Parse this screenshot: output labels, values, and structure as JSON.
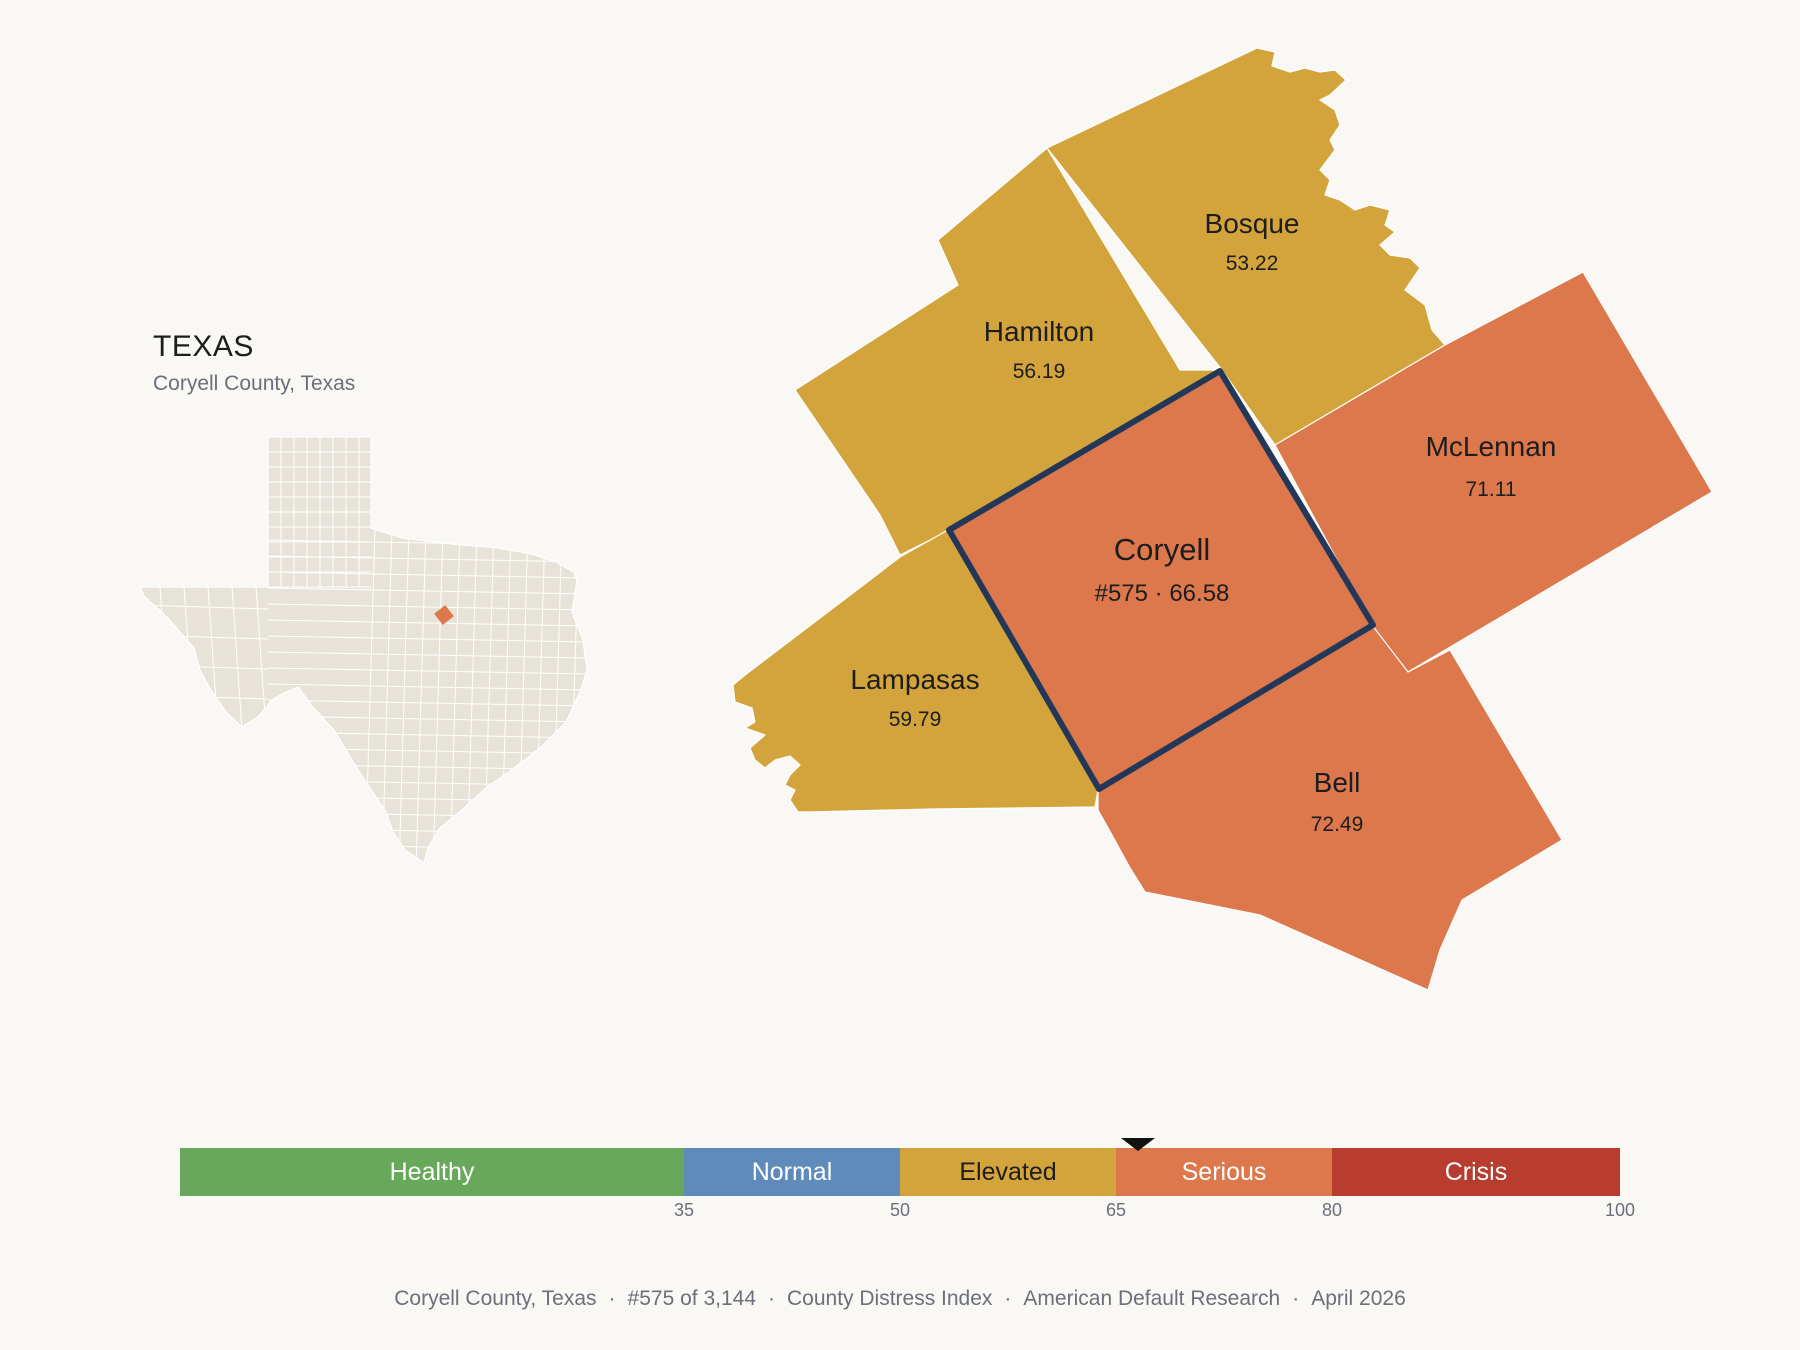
{
  "inset": {
    "title": "TEXAS",
    "subtitle": "Coryell County, Texas"
  },
  "focus_county": {
    "name": "Coryell",
    "label": "#575 · 66.58",
    "rank": 575,
    "score": 66.58
  },
  "neighbors": {
    "bosque": {
      "name": "Bosque",
      "value": "53.22"
    },
    "hamilton": {
      "name": "Hamilton",
      "value": "56.19"
    },
    "mclennan": {
      "name": "McLennan",
      "value": "71.11"
    },
    "lampasas": {
      "name": "Lampasas",
      "value": "59.79"
    },
    "bell": {
      "name": "Bell",
      "value": "72.49"
    }
  },
  "scale": {
    "bands": [
      {
        "label": "Healthy",
        "min": 0,
        "max": 35,
        "color": "#67a85a"
      },
      {
        "label": "Normal",
        "min": 35,
        "max": 50,
        "color": "#5f8bbb"
      },
      {
        "label": "Elevated",
        "min": 50,
        "max": 65,
        "color": "#d3a43c"
      },
      {
        "label": "Serious",
        "min": 65,
        "max": 80,
        "color": "#dc784c"
      },
      {
        "label": "Crisis",
        "min": 80,
        "max": 100,
        "color": "#b93d2e"
      }
    ],
    "ticks": [
      "35",
      "50",
      "65",
      "80",
      "100"
    ],
    "marker_value": 66.58
  },
  "footer": {
    "county": "Coryell County, Texas",
    "rank": "#575 of 3,144",
    "index": "County Distress Index",
    "source": "American Default Research",
    "date": "April 2026"
  },
  "colors": {
    "elevated": "#d3a43c",
    "serious": "#dc784c",
    "focus_outline": "#233858",
    "inset_land": "#e8e3d8",
    "inset_highlight": "#dc784c",
    "background": "#f9f8f5"
  }
}
